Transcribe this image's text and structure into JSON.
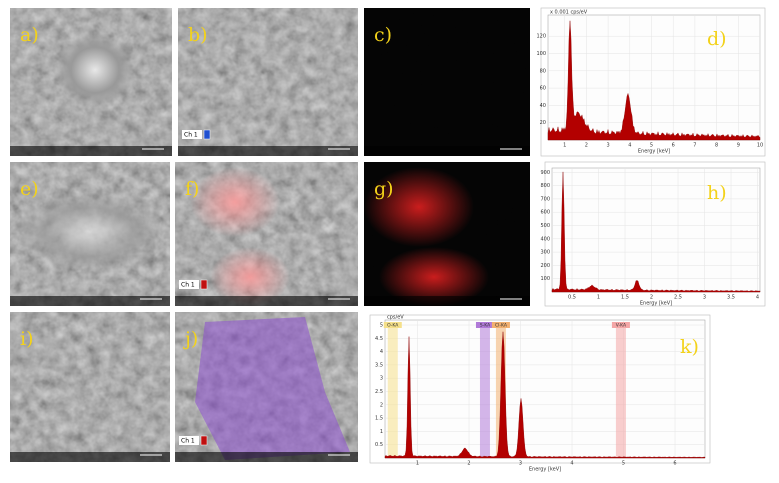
{
  "images": [
    {
      "label": "a)"
    },
    {
      "label": "b)",
      "channel": "Ch 1"
    },
    {
      "label": "c)"
    },
    {
      "label": "e)"
    },
    {
      "label": "f)",
      "channel": "Ch 1"
    },
    {
      "label": "g)"
    },
    {
      "label": "i)"
    },
    {
      "label": "j)",
      "channel": "Ch 1"
    }
  ],
  "spectra": [
    {
      "label": "d)",
      "ylabel": "x 0.001 cps/eV",
      "xlabel": "Energy [keV]",
      "xticks": [
        1,
        2,
        3,
        4,
        5,
        6,
        7,
        8,
        9,
        10
      ],
      "yticks": [
        20,
        40,
        60,
        80,
        100,
        120
      ]
    },
    {
      "label": "h)",
      "xlabel": "Energy [keV]",
      "xticks": [
        0.5,
        1.0,
        1.5,
        2.0,
        2.5,
        3.0,
        3.5,
        4.0
      ],
      "yticks": [
        100,
        200,
        300,
        400,
        500,
        600,
        700,
        800,
        900
      ]
    },
    {
      "label": "k)",
      "ylabel": "cps/eV",
      "xlabel": "Energy [keV]",
      "xticks": [
        1,
        2,
        3,
        4,
        5,
        6
      ],
      "yticks": [
        0.5,
        1.0,
        1.5,
        2.0,
        2.5,
        3.0,
        3.5,
        4.0,
        4.5,
        5.0
      ],
      "peaks": [
        {
          "name": "O-KA",
          "at": 0.52
        },
        {
          "name": "S-KA",
          "at": 2.31
        },
        {
          "name": "Cl-KA",
          "at": 2.62
        },
        {
          "name": "V-KA",
          "at": 4.95
        }
      ]
    }
  ]
}
